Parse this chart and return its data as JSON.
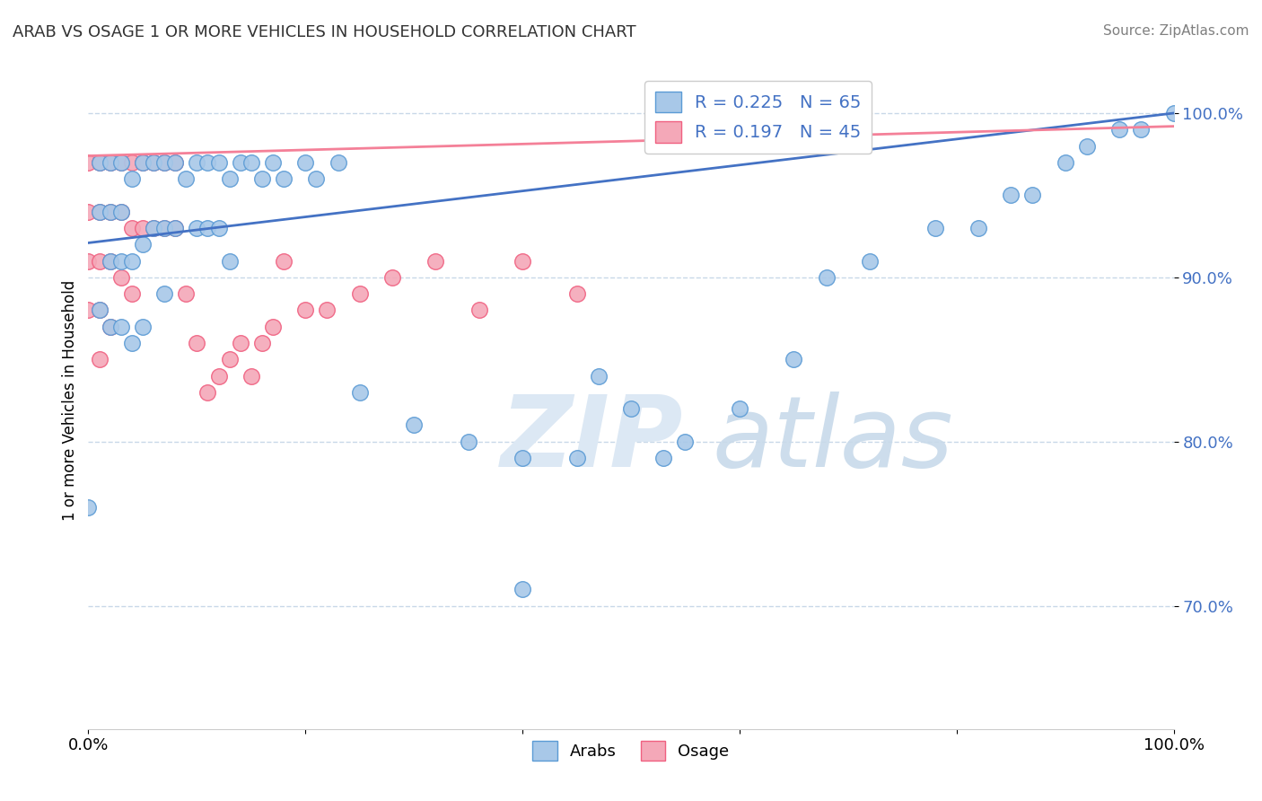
{
  "title": "ARAB VS OSAGE 1 OR MORE VEHICLES IN HOUSEHOLD CORRELATION CHART",
  "source": "Source: ZipAtlas.com",
  "ylabel": "1 or more Vehicles in Household",
  "xlim": [
    0.0,
    1.0
  ],
  "ylim": [
    0.625,
    1.025
  ],
  "yticks": [
    0.7,
    0.8,
    0.9,
    1.0
  ],
  "ytick_labels": [
    "70.0%",
    "80.0%",
    "90.0%",
    "100.0%"
  ],
  "xticks": [
    0.0,
    0.2,
    0.4,
    0.6,
    0.8,
    1.0
  ],
  "xtick_labels": [
    "0.0%",
    "",
    "",
    "",
    "",
    "100.0%"
  ],
  "arab_color": "#a8c8e8",
  "osage_color": "#f4a8b8",
  "arab_edge_color": "#5b9bd5",
  "osage_edge_color": "#f06080",
  "arab_line_color": "#4472c4",
  "osage_line_color": "#f48098",
  "legend_R_color": "#4472c4",
  "grid_color": "#c8d8e8",
  "arab_R": 0.225,
  "arab_N": 65,
  "osage_R": 0.197,
  "osage_N": 45,
  "arab_points_x": [
    0.0,
    0.01,
    0.01,
    0.01,
    0.02,
    0.02,
    0.02,
    0.02,
    0.03,
    0.03,
    0.03,
    0.03,
    0.04,
    0.04,
    0.04,
    0.05,
    0.05,
    0.05,
    0.06,
    0.06,
    0.07,
    0.07,
    0.07,
    0.08,
    0.08,
    0.09,
    0.1,
    0.1,
    0.11,
    0.11,
    0.12,
    0.12,
    0.13,
    0.13,
    0.14,
    0.15,
    0.16,
    0.17,
    0.18,
    0.2,
    0.21,
    0.23,
    0.25,
    0.3,
    0.35,
    0.4,
    0.45,
    0.5,
    0.55,
    0.6,
    0.65,
    0.68,
    0.72,
    0.78,
    0.82,
    0.85,
    0.87,
    0.9,
    0.92,
    0.95,
    0.97,
    1.0,
    0.47,
    0.53,
    0.4
  ],
  "arab_points_y": [
    0.76,
    0.97,
    0.94,
    0.88,
    0.97,
    0.94,
    0.91,
    0.87,
    0.97,
    0.94,
    0.91,
    0.87,
    0.96,
    0.91,
    0.86,
    0.97,
    0.92,
    0.87,
    0.97,
    0.93,
    0.97,
    0.93,
    0.89,
    0.97,
    0.93,
    0.96,
    0.97,
    0.93,
    0.97,
    0.93,
    0.97,
    0.93,
    0.96,
    0.91,
    0.97,
    0.97,
    0.96,
    0.97,
    0.96,
    0.97,
    0.96,
    0.97,
    0.83,
    0.81,
    0.8,
    0.79,
    0.79,
    0.82,
    0.8,
    0.82,
    0.85,
    0.9,
    0.91,
    0.93,
    0.93,
    0.95,
    0.95,
    0.97,
    0.98,
    0.99,
    0.99,
    1.0,
    0.84,
    0.79,
    0.71
  ],
  "osage_points_x": [
    0.0,
    0.0,
    0.0,
    0.0,
    0.01,
    0.01,
    0.01,
    0.01,
    0.01,
    0.02,
    0.02,
    0.02,
    0.02,
    0.03,
    0.03,
    0.03,
    0.04,
    0.04,
    0.04,
    0.05,
    0.05,
    0.06,
    0.06,
    0.07,
    0.07,
    0.08,
    0.08,
    0.09,
    0.1,
    0.11,
    0.12,
    0.13,
    0.14,
    0.15,
    0.16,
    0.17,
    0.18,
    0.2,
    0.22,
    0.25,
    0.28,
    0.32,
    0.36,
    0.4,
    0.45
  ],
  "osage_points_y": [
    0.97,
    0.94,
    0.91,
    0.88,
    0.97,
    0.94,
    0.91,
    0.88,
    0.85,
    0.97,
    0.94,
    0.91,
    0.87,
    0.97,
    0.94,
    0.9,
    0.97,
    0.93,
    0.89,
    0.97,
    0.93,
    0.97,
    0.93,
    0.97,
    0.93,
    0.97,
    0.93,
    0.89,
    0.86,
    0.83,
    0.84,
    0.85,
    0.86,
    0.84,
    0.86,
    0.87,
    0.91,
    0.88,
    0.88,
    0.89,
    0.9,
    0.91,
    0.88,
    0.91,
    0.89
  ]
}
